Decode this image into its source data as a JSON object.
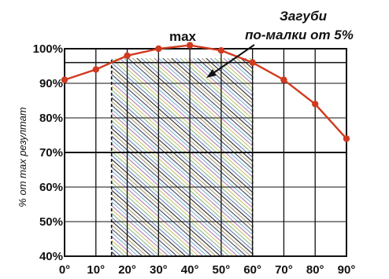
{
  "chart_data": {
    "type": "line",
    "x": [
      0,
      10,
      20,
      30,
      40,
      50,
      60,
      70,
      80,
      90
    ],
    "x_tick_labels": [
      "0°",
      "10°",
      "20°",
      "30°",
      "40°",
      "50°",
      "60°",
      "70°",
      "80°",
      "90°"
    ],
    "xlim": [
      0,
      90
    ],
    "y_tick_labels": [
      "40%",
      "50%",
      "60%",
      "70%",
      "80%",
      "90%",
      "100%"
    ],
    "ylim": [
      40,
      100
    ],
    "ylabel": "% от max резултат",
    "series": [
      {
        "values": [
          91,
          94,
          98,
          100,
          101,
          99.5,
          96,
          91,
          84,
          74
        ]
      }
    ],
    "shaded_region": {
      "x_from": 15,
      "x_to": 60
    },
    "annotations": {
      "max_label": "max",
      "note_line1": "Загуби",
      "note_line2": "по-малки от 5%"
    },
    "grid": true,
    "colors": {
      "line": "#d03a1f",
      "marker": "#d03a1f",
      "grid": "#111111"
    }
  }
}
